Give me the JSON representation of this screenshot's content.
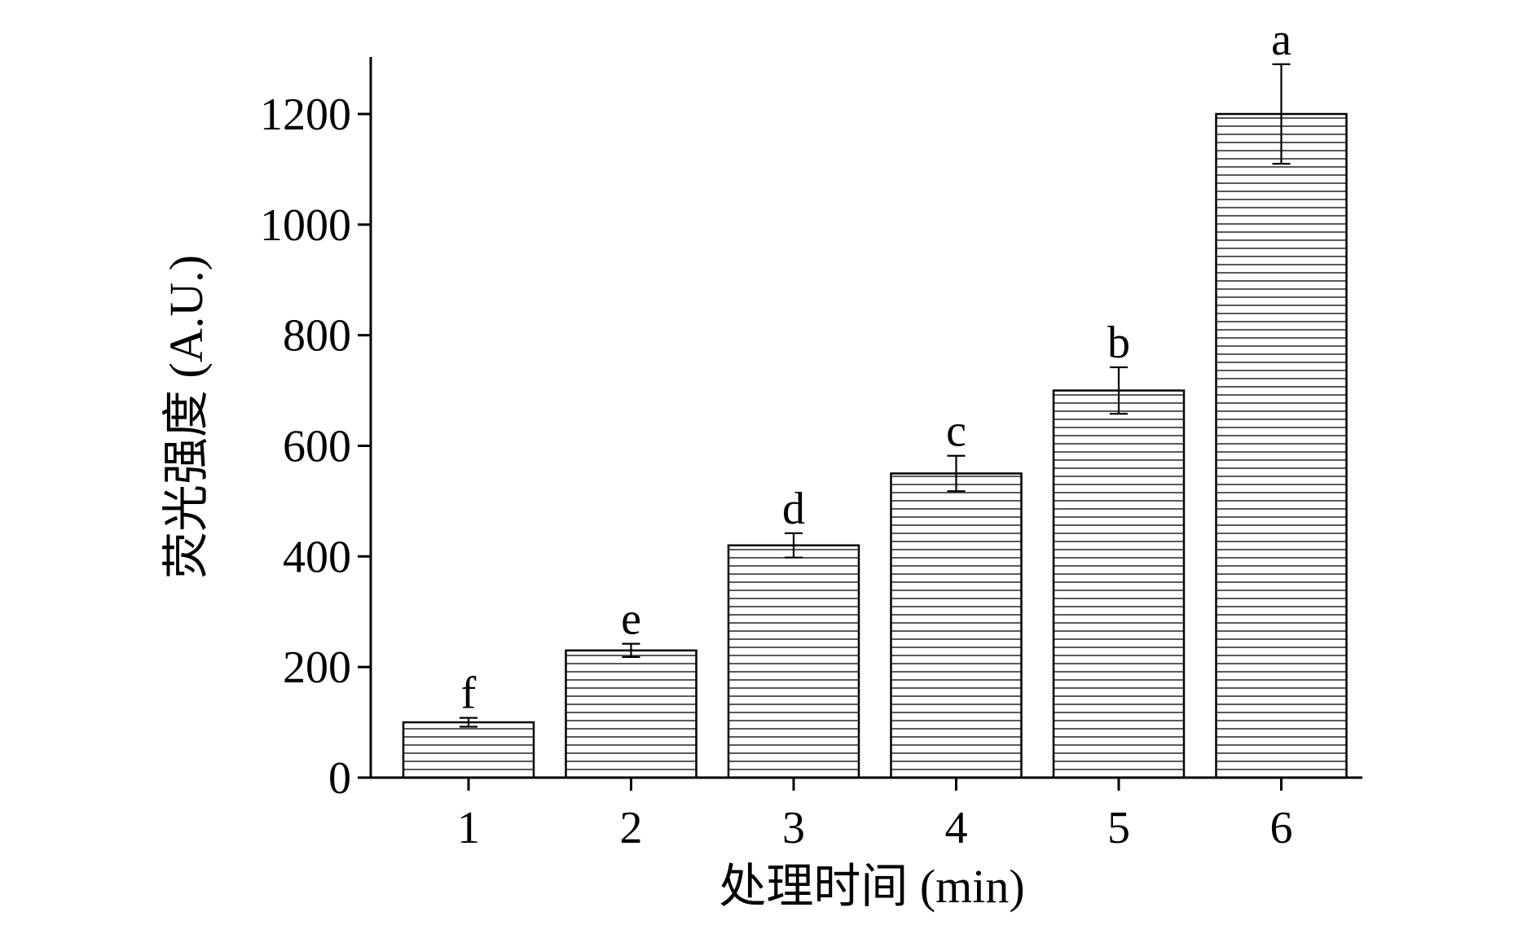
{
  "chart_data": {
    "type": "bar",
    "categories": [
      "1",
      "2",
      "3",
      "4",
      "5",
      "6"
    ],
    "values": [
      100,
      230,
      420,
      550,
      700,
      1200
    ],
    "errors": [
      8,
      12,
      22,
      32,
      42,
      90
    ],
    "significance": [
      "f",
      "e",
      "d",
      "c",
      "b",
      "a"
    ],
    "xlabel": "处理时间 (min)",
    "ylabel": "荧光强度 (A.U.)",
    "ylim": [
      0,
      1300
    ],
    "yticks": [
      0,
      200,
      400,
      600,
      800,
      1000,
      1200
    ],
    "bar_pattern": "horizontal-hatch",
    "grid": false
  }
}
